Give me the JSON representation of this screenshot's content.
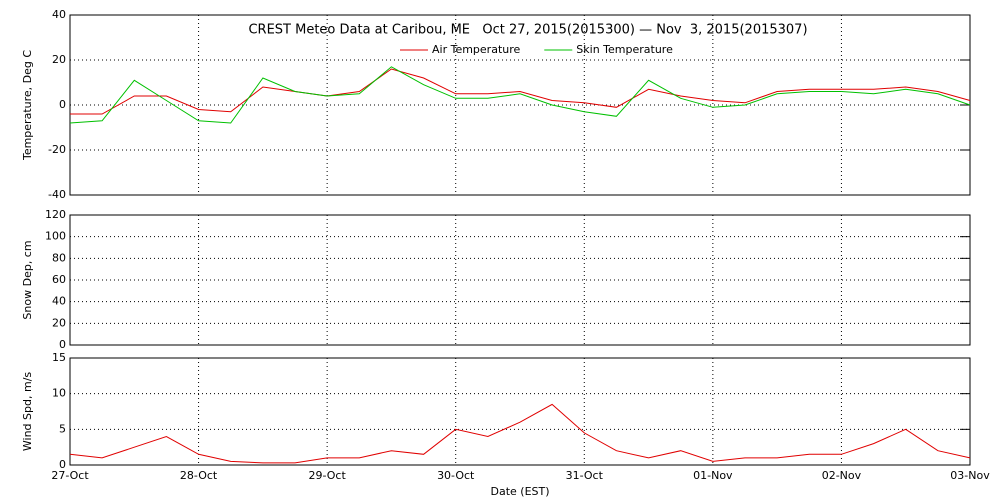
{
  "chart_data": [
    {
      "type": "line",
      "title": "CREST Meteo Data at Caribou, ME   Oct 27, 2015(2015300) — Nov  3, 2015(2015307)",
      "y_label": "Temperature, Deg C",
      "legend": "upper center",
      "grid": true,
      "x": [
        "2015-10-27 00:00",
        "2015-10-27 06:00",
        "2015-10-27 12:00",
        "2015-10-27 18:00",
        "2015-10-28 00:00",
        "2015-10-28 06:00",
        "2015-10-28 12:00",
        "2015-10-28 18:00",
        "2015-10-29 00:00",
        "2015-10-29 06:00",
        "2015-10-29 12:00",
        "2015-10-29 18:00",
        "2015-10-30 00:00",
        "2015-10-30 06:00",
        "2015-10-30 12:00",
        "2015-10-30 18:00",
        "2015-10-31 00:00",
        "2015-10-31 06:00",
        "2015-10-31 12:00",
        "2015-10-31 18:00",
        "2015-11-01 00:00",
        "2015-11-01 06:00",
        "2015-11-01 12:00",
        "2015-11-01 18:00",
        "2015-11-02 00:00",
        "2015-11-02 06:00",
        "2015-11-02 12:00",
        "2015-11-02 18:00",
        "2015-11-03 00:00"
      ],
      "series": [
        {
          "name": "Air Temperature",
          "color": "#e00000",
          "values": [
            -4,
            -4,
            4,
            4,
            -2,
            -3,
            8,
            6,
            4,
            6,
            16,
            12,
            5,
            5,
            6,
            2,
            1,
            -1,
            7,
            4,
            2,
            1,
            6,
            7,
            7,
            7,
            8,
            6,
            2
          ]
        },
        {
          "name": "Skin Temperature",
          "color": "#00c000",
          "values": [
            -8,
            -7,
            11,
            2,
            -7,
            -8,
            12,
            6,
            4,
            5,
            17,
            9,
            3,
            3,
            5,
            0,
            -3,
            -5,
            11,
            3,
            -1,
            0,
            5,
            6,
            6,
            5,
            7,
            5,
            0
          ]
        }
      ],
      "xlim": [
        "2015-10-27 00:00",
        "2015-11-03 00:00"
      ],
      "xticks": [
        "2015-10-27 00:00",
        "2015-10-28 00:00",
        "2015-10-29 00:00",
        "2015-10-30 00:00",
        "2015-10-31 00:00",
        "2015-11-01 00:00",
        "2015-11-02 00:00",
        "2015-11-03 00:00"
      ],
      "ylim": [
        -40,
        40
      ],
      "yticks": [
        -40,
        -20,
        0,
        20,
        40
      ]
    },
    {
      "type": "line",
      "y_label": "Snow Dep, cm",
      "grid": true,
      "series": [],
      "xlim": [
        "2015-10-27 00:00",
        "2015-11-03 00:00"
      ],
      "xticks": [
        "2015-10-27 00:00",
        "2015-10-28 00:00",
        "2015-10-29 00:00",
        "2015-10-30 00:00",
        "2015-10-31 00:00",
        "2015-11-01 00:00",
        "2015-11-02 00:00",
        "2015-11-03 00:00"
      ],
      "ylim": [
        0,
        120
      ],
      "yticks": [
        0,
        20,
        40,
        60,
        80,
        100,
        120
      ]
    },
    {
      "type": "line",
      "y_label": "Wind Spd, m/s",
      "x_label": "Date (EST)",
      "grid": true,
      "x": [
        "2015-10-27 00:00",
        "2015-10-27 06:00",
        "2015-10-27 12:00",
        "2015-10-27 18:00",
        "2015-10-28 00:00",
        "2015-10-28 06:00",
        "2015-10-28 12:00",
        "2015-10-28 18:00",
        "2015-10-29 00:00",
        "2015-10-29 06:00",
        "2015-10-29 12:00",
        "2015-10-29 18:00",
        "2015-10-30 00:00",
        "2015-10-30 06:00",
        "2015-10-30 12:00",
        "2015-10-30 18:00",
        "2015-10-31 00:00",
        "2015-10-31 06:00",
        "2015-10-31 12:00",
        "2015-10-31 18:00",
        "2015-11-01 00:00",
        "2015-11-01 06:00",
        "2015-11-01 12:00",
        "2015-11-01 18:00",
        "2015-11-02 00:00",
        "2015-11-02 06:00",
        "2015-11-02 12:00",
        "2015-11-02 18:00",
        "2015-11-03 00:00"
      ],
      "series": [
        {
          "color": "#e00000",
          "values": [
            1.5,
            1,
            2.5,
            4,
            1.5,
            0.5,
            0.3,
            0.3,
            1,
            1,
            2,
            1.5,
            5,
            4,
            6,
            8.5,
            4.5,
            2,
            1,
            2,
            0.5,
            1,
            1,
            1.5,
            1.5,
            3,
            5,
            2,
            1
          ]
        }
      ],
      "xlim": [
        "2015-10-27 00:00",
        "2015-11-03 00:00"
      ],
      "xticks": [
        {
          "value": "2015-10-27 00:00",
          "label": "27-Oct"
        },
        {
          "value": "2015-10-28 00:00",
          "label": "28-Oct"
        },
        {
          "value": "2015-10-29 00:00",
          "label": "29-Oct"
        },
        {
          "value": "2015-10-30 00:00",
          "label": "30-Oct"
        },
        {
          "value": "2015-10-31 00:00",
          "label": "31-Oct"
        },
        {
          "value": "2015-11-01 00:00",
          "label": "01-Nov"
        },
        {
          "value": "2015-11-02 00:00",
          "label": "02-Nov"
        },
        {
          "value": "2015-11-03 00:00",
          "label": "03-Nov"
        }
      ],
      "ylim": [
        0,
        15
      ],
      "yticks": [
        0,
        5,
        10,
        15
      ]
    }
  ]
}
